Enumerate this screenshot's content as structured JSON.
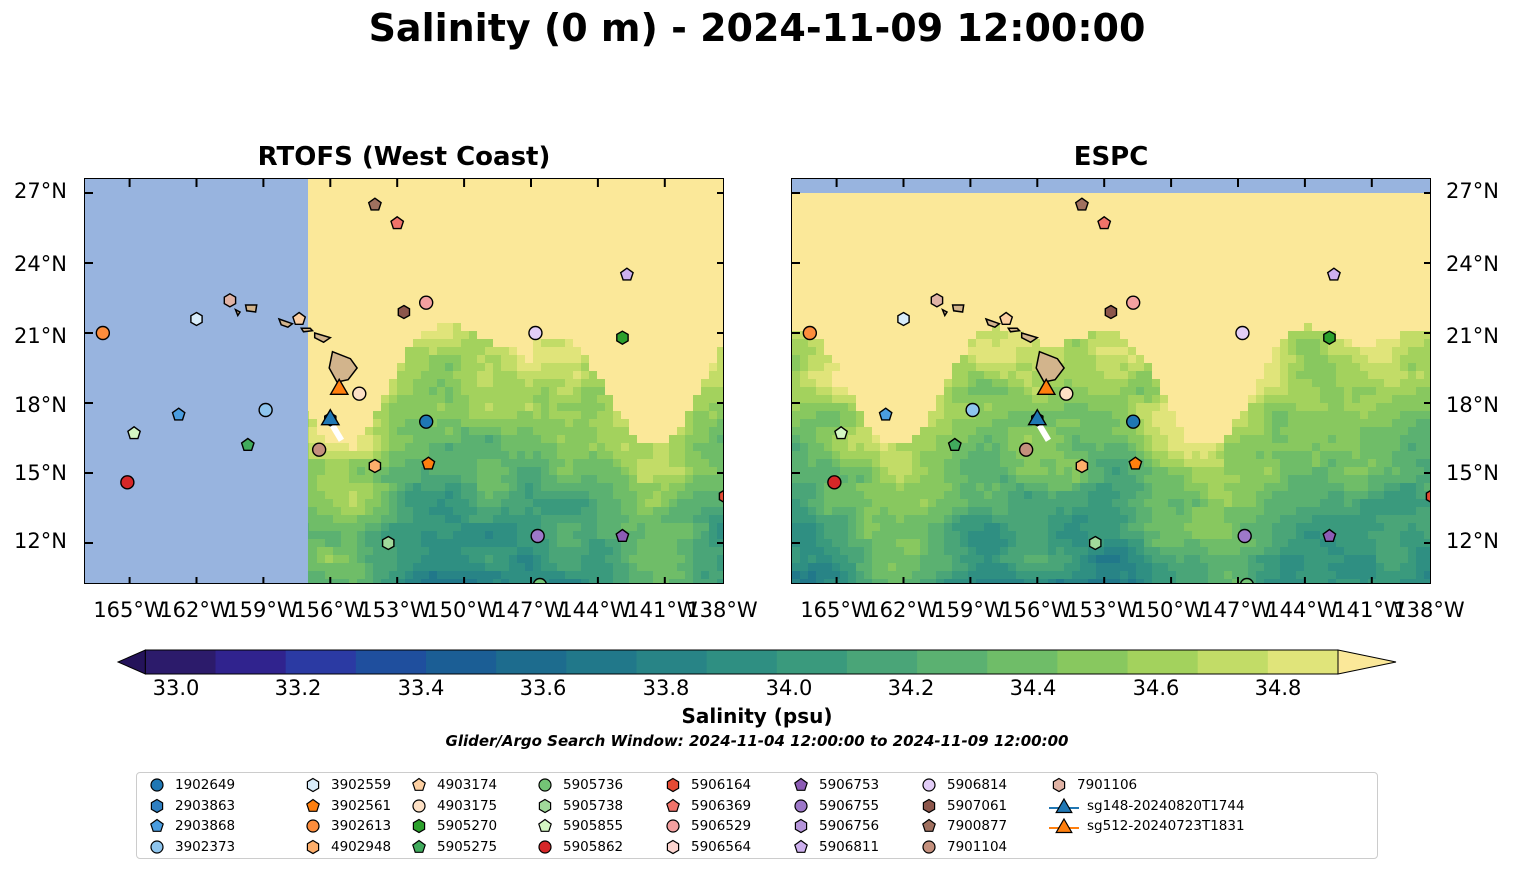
{
  "title": "Salinity (0 m) - 2024-11-09 12:00:00",
  "panels": [
    {
      "title": "RTOFS (West Coast)",
      "mask_west_of": -157.0,
      "mask_north_of": null
    },
    {
      "title": "ESPC",
      "mask_west_of": null,
      "mask_north_of": 27.0
    }
  ],
  "lat_ticks": [
    "27°N",
    "24°N",
    "21°N",
    "18°N",
    "15°N",
    "12°N"
  ],
  "lat_values": [
    27,
    24,
    21,
    18,
    15,
    12
  ],
  "lon_ticks": [
    "165°W",
    "162°W",
    "159°W",
    "156°W",
    "153°W",
    "150°W",
    "147°W",
    "144°W",
    "141°W",
    "138°W"
  ],
  "lon_values": [
    -165,
    -162,
    -159,
    -156,
    -153,
    -150,
    -147,
    -144,
    -141,
    -138
  ],
  "extent": {
    "lon": [
      -167,
      -138.3
    ],
    "lat": [
      10.2,
      27.6
    ]
  },
  "colorbar": {
    "label": "Salinity (psu)",
    "min": 32.9,
    "max": 34.9,
    "ticks": [
      "33.0",
      "33.2",
      "33.4",
      "33.6",
      "33.8",
      "34.0",
      "34.2",
      "34.4",
      "34.6",
      "34.8"
    ],
    "colors": [
      "#2c1b6b",
      "#30238e",
      "#2b3aa3",
      "#1f4f9e",
      "#1b5e95",
      "#1d6c8e",
      "#21788a",
      "#288486",
      "#2f8f82",
      "#3a9a7d",
      "#4aa578",
      "#5bb171",
      "#6fbd68",
      "#88c85f",
      "#a3d25d",
      "#c2dc67",
      "#e0e47a"
    ],
    "under": "#24135a",
    "over": "#fbe899"
  },
  "search_window": "Glider/Argo Search Window: 2024-11-04 12:00:00 to 2024-11-09 12:00:00",
  "legend": [
    {
      "label": "1902649",
      "marker": "circle",
      "color": "#1f77b4"
    },
    {
      "label": "2903863",
      "marker": "hexagon",
      "color": "#2f7fc1"
    },
    {
      "label": "2903868",
      "marker": "pentagon",
      "color": "#4a9de0"
    },
    {
      "label": "3902373",
      "marker": "circle",
      "color": "#8ec5ee"
    },
    {
      "label": "3902559",
      "marker": "hexagon",
      "color": "#d8ecfa"
    },
    {
      "label": "3902561",
      "marker": "pentagon",
      "color": "#ff7f0e"
    },
    {
      "label": "3902613",
      "marker": "circle",
      "color": "#fd8d3c"
    },
    {
      "label": "4902948",
      "marker": "hexagon",
      "color": "#fdae6b"
    },
    {
      "label": "4903174",
      "marker": "pentagon",
      "color": "#fdd0a2"
    },
    {
      "label": "4903175",
      "marker": "circle",
      "color": "#fde0c5"
    },
    {
      "label": "5905270",
      "marker": "hexagon",
      "color": "#2ca02c"
    },
    {
      "label": "5905275",
      "marker": "pentagon",
      "color": "#41ab5d"
    },
    {
      "label": "5905736",
      "marker": "circle",
      "color": "#74c476"
    },
    {
      "label": "5905738",
      "marker": "hexagon",
      "color": "#a1d99b"
    },
    {
      "label": "5905855",
      "marker": "pentagon",
      "color": "#d4f7c3"
    },
    {
      "label": "5905862",
      "marker": "circle",
      "color": "#d62728"
    },
    {
      "label": "5906164",
      "marker": "hexagon",
      "color": "#e34a33"
    },
    {
      "label": "5906369",
      "marker": "pentagon",
      "color": "#f0736a"
    },
    {
      "label": "5906529",
      "marker": "circle",
      "color": "#f4a0a0"
    },
    {
      "label": "5906564",
      "marker": "hexagon",
      "color": "#fcd5d0"
    },
    {
      "label": "5906753",
      "marker": "pentagon",
      "color": "#8c5cb5"
    },
    {
      "label": "5906755",
      "marker": "circle",
      "color": "#9d78c9"
    },
    {
      "label": "5906756",
      "marker": "hexagon",
      "color": "#b595da"
    },
    {
      "label": "5906811",
      "marker": "pentagon",
      "color": "#cdb0ee"
    },
    {
      "label": "5906814",
      "marker": "circle",
      "color": "#e2cdf7"
    },
    {
      "label": "5907061",
      "marker": "hexagon",
      "color": "#8c564b"
    },
    {
      "label": "7900877",
      "marker": "pentagon",
      "color": "#a0705f"
    },
    {
      "label": "7901104",
      "marker": "circle",
      "color": "#c4907d"
    },
    {
      "label": "7901106",
      "marker": "hexagon",
      "color": "#e0b3a5"
    },
    {
      "label": "sg148-20240820T1744",
      "marker": "triangle-line",
      "color": "#1f77b4"
    },
    {
      "label": "sg512-20240723T1831",
      "marker": "triangle-line",
      "color": "#ff7f0e"
    }
  ],
  "floats": [
    {
      "id": "3902613",
      "lon": -166.2,
      "lat": 21.0
    },
    {
      "id": "5905862",
      "lon": -165.1,
      "lat": 14.6
    },
    {
      "id": "5905855",
      "lon": -164.8,
      "lat": 16.7
    },
    {
      "id": "2903868",
      "lon": -162.8,
      "lat": 17.5
    },
    {
      "id": "3902559",
      "lon": -162.0,
      "lat": 21.6
    },
    {
      "id": "7901106",
      "lon": -160.5,
      "lat": 22.4
    },
    {
      "id": "5905275",
      "lon": -159.7,
      "lat": 16.2
    },
    {
      "id": "3902373",
      "lon": -158.9,
      "lat": 17.7
    },
    {
      "id": "4903174",
      "lon": -157.4,
      "lat": 21.6
    },
    {
      "id": "7901104",
      "lon": -156.5,
      "lat": 16.0
    },
    {
      "id": "2903863",
      "lon": -156.0,
      "lat": 17.3
    },
    {
      "id": "4903175",
      "lon": -154.7,
      "lat": 18.4
    },
    {
      "id": "4902948",
      "lon": -154.0,
      "lat": 15.3
    },
    {
      "id": "7900877",
      "lon": -154.0,
      "lat": 26.5
    },
    {
      "id": "5906369",
      "lon": -153.0,
      "lat": 25.7
    },
    {
      "id": "5907061",
      "lon": -152.7,
      "lat": 21.9
    },
    {
      "id": "5906529",
      "lon": -151.7,
      "lat": 22.3
    },
    {
      "id": "1902649",
      "lon": -151.7,
      "lat": 17.2
    },
    {
      "id": "3902561",
      "lon": -151.6,
      "lat": 15.4
    },
    {
      "id": "5905738",
      "lon": -153.4,
      "lat": 12.0
    },
    {
      "id": "5906814",
      "lon": -146.8,
      "lat": 21.0
    },
    {
      "id": "5906755",
      "lon": -146.7,
      "lat": 12.3
    },
    {
      "id": "5905736",
      "lon": -146.6,
      "lat": 10.2
    },
    {
      "id": "5906811",
      "lon": -142.7,
      "lat": 23.5
    },
    {
      "id": "5905270",
      "lon": -142.9,
      "lat": 20.8
    },
    {
      "id": "5906753",
      "lon": -142.9,
      "lat": 12.3
    },
    {
      "id": "5906164",
      "lon": -138.3,
      "lat": 14.0
    }
  ],
  "gliders": [
    {
      "id": "sg512-20240723T1831",
      "lon": -155.6,
      "lat": 18.5
    },
    {
      "id": "sg148-20240820T1744",
      "lon": -156.0,
      "lat": 17.2
    }
  ]
}
